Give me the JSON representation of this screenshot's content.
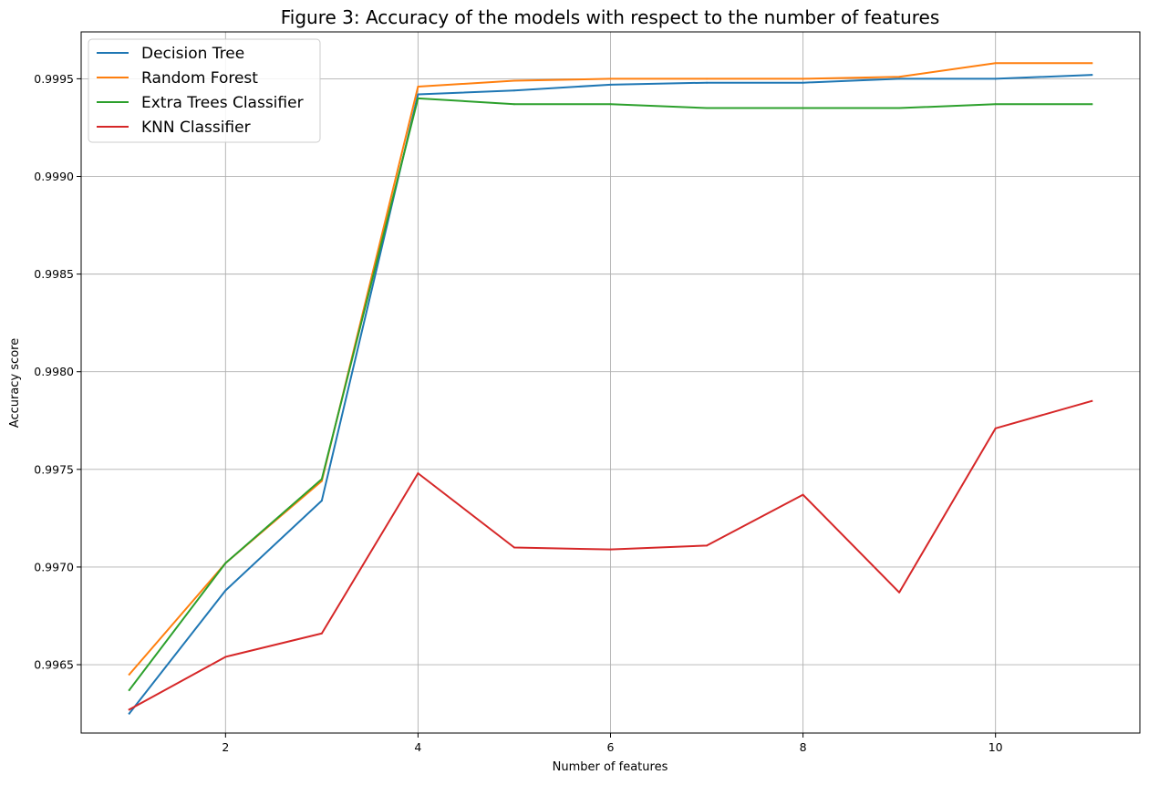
{
  "chart_data": {
    "type": "line",
    "title": "Figure 3: Accuracy of the models with respect to the number of features",
    "xlabel": "Number of features",
    "ylabel": "Accuracy score",
    "x": [
      1,
      2,
      3,
      4,
      5,
      6,
      7,
      8,
      9,
      10,
      11
    ],
    "xlim": [
      0.5,
      11.5
    ],
    "ylim": [
      0.99615,
      0.99974
    ],
    "x_ticks": [
      2,
      4,
      6,
      8,
      10
    ],
    "x_tick_labels": [
      "2",
      "4",
      "6",
      "8",
      "10"
    ],
    "y_ticks": [
      0.9965,
      0.997,
      0.9975,
      0.998,
      0.9985,
      0.999,
      0.9995
    ],
    "y_tick_labels": [
      "0.9965",
      "0.9970",
      "0.9975",
      "0.9980",
      "0.9985",
      "0.9990",
      "0.9995"
    ],
    "grid": true,
    "legend_position": "top-left",
    "series": [
      {
        "name": "Decision Tree",
        "color": "#1f77b4",
        "values": [
          0.99625,
          0.99688,
          0.99734,
          0.99942,
          0.99944,
          0.99947,
          0.99948,
          0.99948,
          0.9995,
          0.9995,
          0.99952
        ]
      },
      {
        "name": "Random Forest",
        "color": "#ff7f0e",
        "values": [
          0.99645,
          0.99702,
          0.99744,
          0.99946,
          0.99949,
          0.9995,
          0.9995,
          0.9995,
          0.99951,
          0.99958,
          0.99958
        ]
      },
      {
        "name": "Extra Trees Classifier",
        "color": "#2ca02c",
        "values": [
          0.99637,
          0.99702,
          0.99745,
          0.9994,
          0.99937,
          0.99937,
          0.99935,
          0.99935,
          0.99935,
          0.99937,
          0.99937
        ]
      },
      {
        "name": "KNN Classifier",
        "color": "#d62728",
        "values": [
          0.99627,
          0.99654,
          0.99666,
          0.99748,
          0.9971,
          0.99709,
          0.99711,
          0.99737,
          0.99687,
          0.99771,
          0.99785
        ]
      }
    ]
  }
}
